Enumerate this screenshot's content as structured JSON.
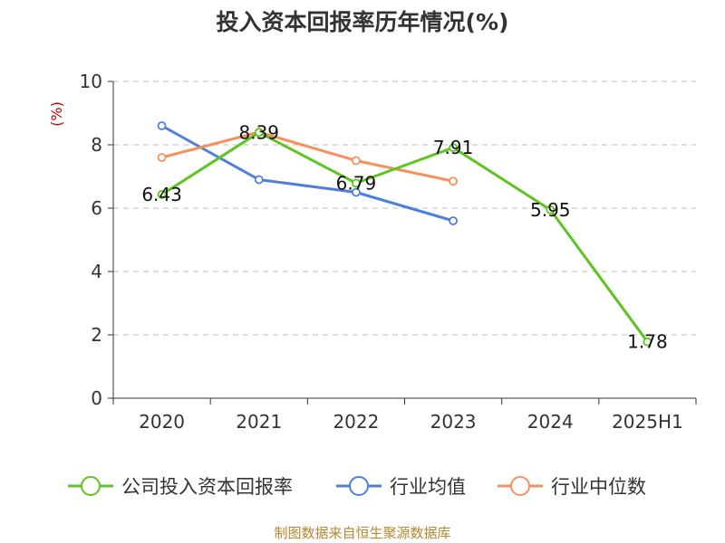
{
  "chart_data": {
    "type": "line",
    "title": "投入资本回报率历年情况(%)",
    "ylabel": "(%)",
    "categories": [
      "2020",
      "2021",
      "2022",
      "2023",
      "2024",
      "2025H1"
    ],
    "ylim": [
      0,
      10
    ],
    "yticks": [
      0,
      2,
      4,
      6,
      8,
      10
    ],
    "grid": true,
    "legend_position": "bottom",
    "series": [
      {
        "name": "公司投入资本回报率",
        "color": "#5ec421",
        "values": [
          6.43,
          8.39,
          6.79,
          7.91,
          5.95,
          1.78
        ],
        "show_labels": true
      },
      {
        "name": "行业均值",
        "color": "#4f7fdc",
        "values": [
          8.6,
          6.9,
          6.5,
          5.6,
          null,
          null
        ],
        "show_labels": false
      },
      {
        "name": "行业中位数",
        "color": "#f5915c",
        "values": [
          7.6,
          8.4,
          7.5,
          6.85,
          null,
          null
        ],
        "show_labels": false
      }
    ],
    "ylabel_color": "#cc0000"
  },
  "source": {
    "text": "制图数据来自恒生聚源数据库",
    "color": "#b8862f"
  }
}
